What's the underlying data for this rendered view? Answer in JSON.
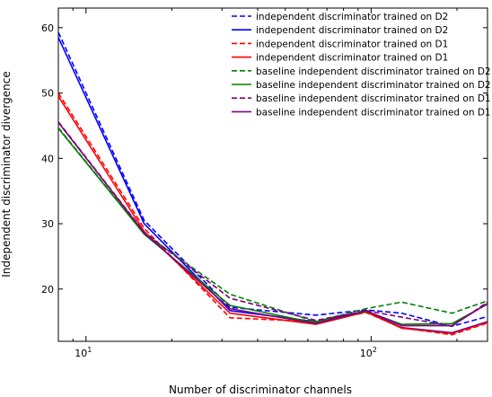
{
  "chart_data": {
    "type": "line",
    "xlabel": "Number of discriminator channels",
    "ylabel": "Independent discriminator divergence",
    "xscale": "log",
    "xlim": [
      8,
      256
    ],
    "ylim": [
      12,
      63
    ],
    "grid": false,
    "legend_placement": "top-right",
    "x": [
      8,
      16,
      32,
      64,
      96,
      128,
      192,
      256
    ],
    "xticks": [
      {
        "value": 10,
        "base": "10",
        "exp": "1"
      },
      {
        "value": 100,
        "base": "10",
        "exp": "2"
      }
    ],
    "yticks": [
      20,
      30,
      40,
      50,
      60
    ],
    "series": [
      {
        "name": "independent discriminator trained on D2",
        "color": "#0000ff",
        "dash": "dashed",
        "values": [
          59.3,
          30.5,
          17.2,
          16.0,
          16.8,
          16.3,
          14.3,
          15.8
        ]
      },
      {
        "name": "independent discriminator trained on D2",
        "color": "#0000ff",
        "dash": "solid",
        "values": [
          58.5,
          30.0,
          16.7,
          15.0,
          16.6,
          14.1,
          13.3,
          15.0
        ]
      },
      {
        "name": "independent discriminator trained on D1",
        "color": "#ff0000",
        "dash": "dashed",
        "values": [
          50.0,
          29.3,
          15.6,
          15.0,
          16.4,
          14.1,
          13.0,
          14.8
        ]
      },
      {
        "name": "independent discriminator trained on D1",
        "color": "#ff0000",
        "dash": "solid",
        "values": [
          49.5,
          28.8,
          16.3,
          14.6,
          16.5,
          14.0,
          13.2,
          14.9
        ]
      },
      {
        "name": "baseline independent discriminator trained on D2",
        "color": "#008000",
        "dash": "dashed",
        "values": [
          44.7,
          28.5,
          19.2,
          15.0,
          17.0,
          18.0,
          16.3,
          18.2
        ]
      },
      {
        "name": "baseline independent discriminator trained on D2",
        "color": "#008000",
        "dash": "solid",
        "values": [
          44.6,
          28.4,
          17.5,
          14.8,
          16.6,
          14.6,
          14.7,
          17.7
        ]
      },
      {
        "name": "baseline independent discriminator trained on D1",
        "color": "#800080",
        "dash": "dashed",
        "values": [
          45.6,
          28.7,
          18.6,
          15.2,
          16.7,
          15.7,
          14.3,
          18.0
        ]
      },
      {
        "name": "baseline independent discriminator trained on D1",
        "color": "#800080",
        "dash": "solid",
        "values": [
          45.5,
          28.6,
          17.0,
          14.7,
          16.7,
          14.4,
          14.4,
          17.8
        ]
      }
    ]
  }
}
